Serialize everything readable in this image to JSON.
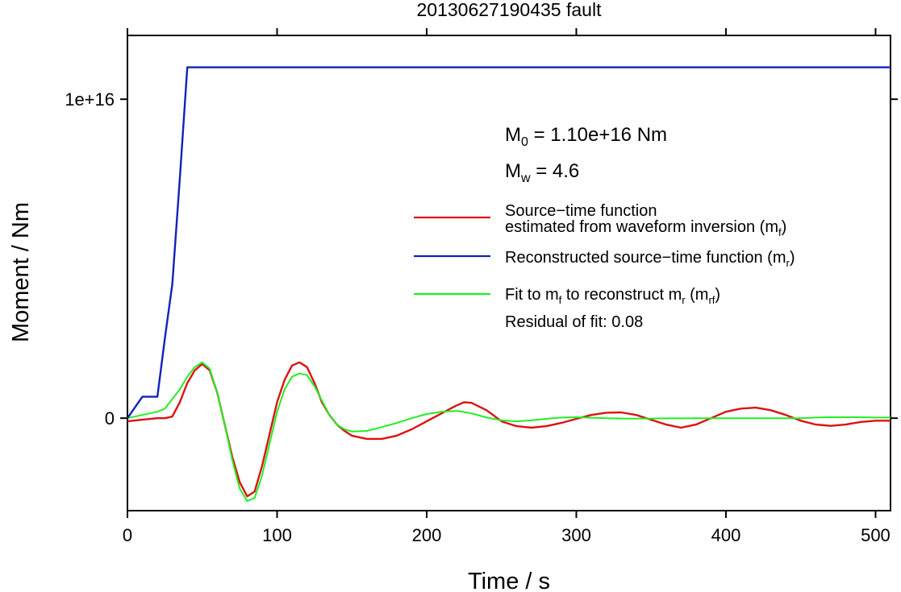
{
  "chart_data": {
    "type": "line",
    "title": "20130627190435 fault",
    "xlabel": "Time / s",
    "ylabel": "Moment / Nm",
    "xlim": [
      0,
      510
    ],
    "ylim": [
      -2900000000000000.0,
      1.2e+16
    ],
    "x_ticks": [
      0,
      100,
      200,
      300,
      400,
      500
    ],
    "y_ticks": [
      {
        "value": 0,
        "label": "0"
      },
      {
        "value": 1e+16,
        "label": "1e+16"
      }
    ],
    "grid": false,
    "legend_position": "right",
    "annotations": {
      "m0": {
        "label": "M",
        "sub": "0",
        "rest": " = 1.10e+16 Nm"
      },
      "mw": {
        "label": "M",
        "sub": "w",
        "rest": " = 4.6"
      },
      "residual": "Residual of fit: 0.08"
    },
    "series": [
      {
        "name_lines": [
          "Source−time function",
          "estimated from waveform inversion (m",
          "f",
          ")"
        ],
        "color": "#dd1111",
        "x": [
          0,
          10,
          20,
          25,
          30,
          35,
          40,
          45,
          50,
          55,
          60,
          65,
          70,
          75,
          80,
          85,
          90,
          95,
          100,
          105,
          110,
          115,
          120,
          125,
          130,
          135,
          140,
          145,
          150,
          155,
          160,
          165,
          170,
          180,
          190,
          200,
          210,
          220,
          225,
          230,
          240,
          250,
          260,
          270,
          280,
          290,
          300,
          310,
          320,
          330,
          340,
          350,
          360,
          370,
          380,
          390,
          400,
          410,
          420,
          430,
          440,
          450,
          460,
          470,
          480,
          490,
          500,
          510
        ],
        "y": [
          -100000000000000.0,
          -50000000000000.0,
          0,
          0,
          50000000000000.0,
          500000000000000.0,
          1100000000000000.0,
          1500000000000000.0,
          1700000000000000.0,
          1500000000000000.0,
          800000000000000.0,
          -200000000000000.0,
          -1200000000000000.0,
          -2000000000000000.0,
          -2450000000000000.0,
          -2300000000000000.0,
          -1500000000000000.0,
          -500000000000000.0,
          500000000000000.0,
          1200000000000000.0,
          1650000000000000.0,
          1750000000000000.0,
          1600000000000000.0,
          1100000000000000.0,
          500000000000000.0,
          100000000000000.0,
          -200000000000000.0,
          -400000000000000.0,
          -550000000000000.0,
          -600000000000000.0,
          -650000000000000.0,
          -650000000000000.0,
          -650000000000000.0,
          -550000000000000.0,
          -350000000000000.0,
          -100000000000000.0,
          150000000000000.0,
          400000000000000.0,
          500000000000000.0,
          480000000000000.0,
          250000000000000.0,
          -100000000000000.0,
          -250000000000000.0,
          -300000000000000.0,
          -250000000000000.0,
          -150000000000000.0,
          -20000000000000.0,
          100000000000000.0,
          170000000000000.0,
          180000000000000.0,
          100000000000000.0,
          -50000000000000.0,
          -200000000000000.0,
          -300000000000000.0,
          -200000000000000.0,
          0,
          200000000000000.0,
          300000000000000.0,
          330000000000000.0,
          250000000000000.0,
          100000000000000.0,
          -80000000000000.0,
          -200000000000000.0,
          -240000000000000.0,
          -200000000000000.0,
          -120000000000000.0,
          -80000000000000.0,
          -80000000000000.0
        ]
      },
      {
        "name_lines": [
          "Reconstructed source−time function (m",
          "r",
          ")"
        ],
        "color": "#1122bb",
        "x": [
          0,
          10,
          20,
          25,
          30,
          35,
          40,
          510
        ],
        "y": [
          0,
          670000000000000.0,
          670000000000000.0,
          2500000000000000.0,
          4200000000000000.0,
          7500000000000000.0,
          1.1e+16,
          1.1e+16
        ]
      },
      {
        "name_lines": [
          "Fit to m",
          "f",
          " to reconstruct m",
          "r",
          " (m",
          "rf",
          ")"
        ],
        "color": "#22ee22",
        "x": [
          0,
          10,
          20,
          25,
          30,
          35,
          40,
          45,
          50,
          55,
          60,
          65,
          70,
          75,
          80,
          85,
          90,
          95,
          100,
          105,
          110,
          115,
          120,
          125,
          130,
          135,
          140,
          145,
          150,
          160,
          170,
          180,
          190,
          200,
          210,
          220,
          230,
          240,
          250,
          260,
          270,
          280,
          290,
          300,
          310,
          320,
          330,
          340,
          350,
          360,
          370,
          380,
          390,
          400,
          410,
          420,
          430,
          440,
          450,
          460,
          470,
          480,
          490,
          500,
          510
        ],
        "y": [
          0,
          100000000000000.0,
          200000000000000.0,
          300000000000000.0,
          600000000000000.0,
          900000000000000.0,
          1300000000000000.0,
          1600000000000000.0,
          1750000000000000.0,
          1550000000000000.0,
          800000000000000.0,
          -200000000000000.0,
          -1300000000000000.0,
          -2200000000000000.0,
          -2600000000000000.0,
          -2500000000000000.0,
          -1800000000000000.0,
          -800000000000000.0,
          200000000000000.0,
          900000000000000.0,
          1300000000000000.0,
          1400000000000000.0,
          1350000000000000.0,
          1000000000000000.0,
          550000000000000.0,
          100000000000000.0,
          -200000000000000.0,
          -350000000000000.0,
          -420000000000000.0,
          -400000000000000.0,
          -280000000000000.0,
          -150000000000000.0,
          0,
          130000000000000.0,
          200000000000000.0,
          230000000000000.0,
          150000000000000.0,
          20000000000000.0,
          -70000000000000.0,
          -100000000000000.0,
          -70000000000000.0,
          -20000000000000.0,
          20000000000000.0,
          30000000000000.0,
          15000000000000.0,
          0,
          -10000000000000.0,
          -15000000000000.0,
          -10000000000000.0,
          -5000000000000.0,
          -5000000000000.0,
          0,
          0,
          0,
          0,
          0,
          0,
          0,
          0,
          20000000000000.0,
          30000000000000.0,
          30000000000000.0,
          30000000000000.0,
          20000000000000.0,
          20000000000000.0
        ]
      }
    ]
  }
}
